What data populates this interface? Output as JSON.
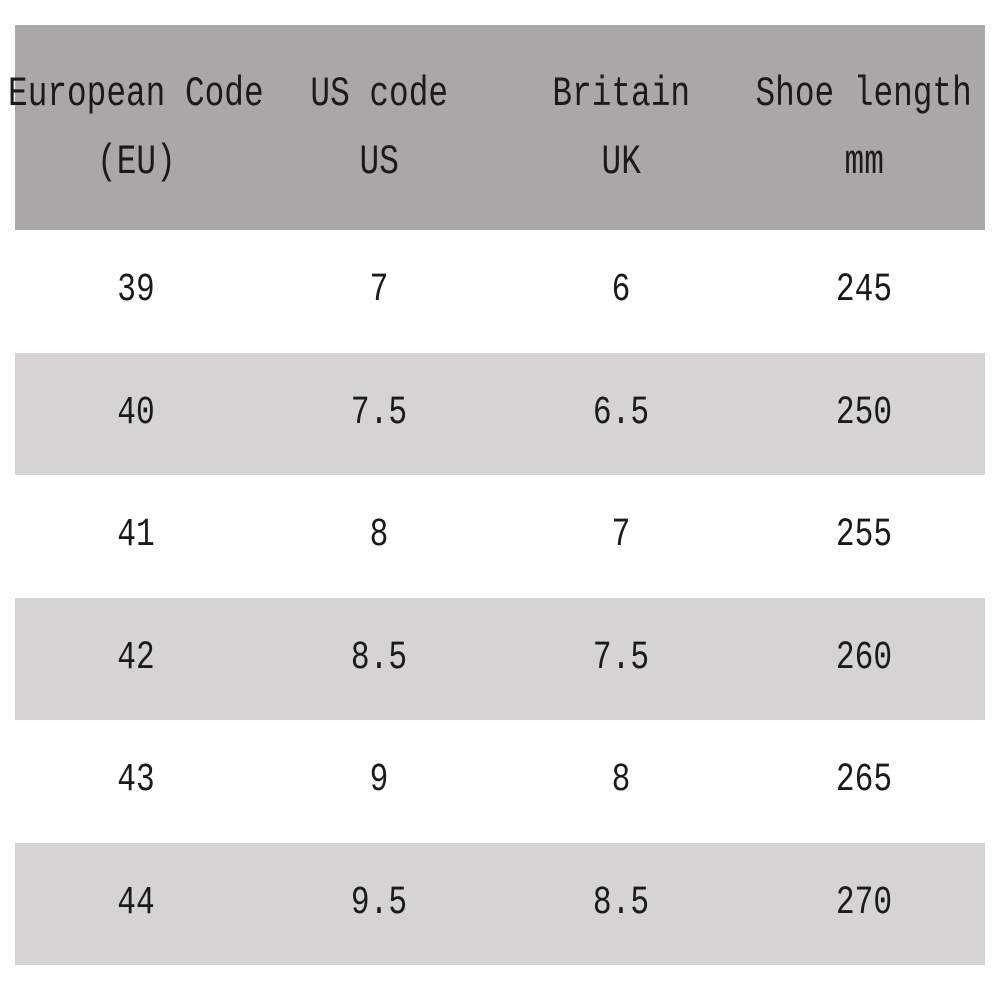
{
  "table": {
    "header": [
      [
        "European Code",
        "(EU)"
      ],
      [
        "US code",
        "US"
      ],
      [
        "Britain",
        "UK"
      ],
      [
        "Shoe length",
        "mm"
      ]
    ],
    "rows": [
      [
        "39",
        "7",
        "6",
        "245"
      ],
      [
        "40",
        "7.5",
        "6.5",
        "250"
      ],
      [
        "41",
        "8",
        "7",
        "255"
      ],
      [
        "42",
        "8.5",
        "7.5",
        "260"
      ],
      [
        "43",
        "9",
        "8",
        "265"
      ],
      [
        "44",
        "9.5",
        "8.5",
        "270"
      ]
    ]
  }
}
